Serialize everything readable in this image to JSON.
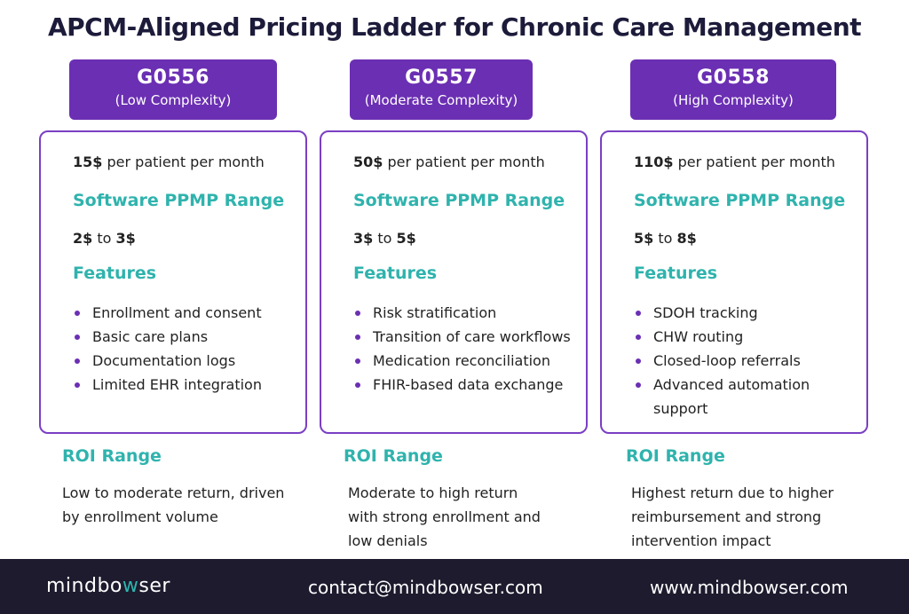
{
  "title": "APCM-Aligned Pricing Ladder for Chronic Care Management",
  "tiers": [
    {
      "code": "G0556",
      "complexity": "(Low Complexity)",
      "price_amount": "15$",
      "price_suffix": " per patient per month",
      "ppmp_heading": "Software PPMP Range",
      "range_low": "2$",
      "range_sep": " to ",
      "range_high": "3$",
      "features_heading": "Features",
      "features": [
        "Enrollment and consent",
        "Basic care plans",
        "Documentation logs",
        "Limited EHR integration"
      ],
      "roi_heading": "ROI Range",
      "roi_text": "Low to moderate return, driven by enrollment volume"
    },
    {
      "code": "G0557",
      "complexity": "(Moderate Complexity)",
      "price_amount": "50$",
      "price_suffix": " per patient per month",
      "ppmp_heading": "Software PPMP Range",
      "range_low": "3$",
      "range_sep": " to ",
      "range_high": "5$",
      "features_heading": "Features",
      "features": [
        "Risk stratification",
        "Transition of care workflows",
        "Medication reconciliation",
        "FHIR-based data exchange"
      ],
      "roi_heading": "ROI Range",
      "roi_text": "Moderate to high return with strong enrollment and low denials"
    },
    {
      "code": "G0558",
      "complexity": "(High Complexity)",
      "price_amount": "110$",
      "price_suffix": " per patient per month",
      "ppmp_heading": "Software PPMP Range",
      "range_low": "5$",
      "range_sep": " to ",
      "range_high": "8$",
      "features_heading": "Features",
      "features": [
        "SDOH tracking",
        "CHW routing",
        "Closed-loop referrals",
        "Advanced automation support"
      ],
      "roi_heading": "ROI Range",
      "roi_text": "Highest return due to higher reimbursement and strong intervention impact"
    }
  ],
  "footer": {
    "logo_start": "mindbo",
    "logo_accent": "w",
    "logo_end": "ser",
    "email": "contact@mindbowser.com",
    "website": "www.mindbowser.com"
  },
  "colors": {
    "purple": "#6b2fb3",
    "teal": "#2fb3ad",
    "footer_bg": "#1e1b2e"
  }
}
